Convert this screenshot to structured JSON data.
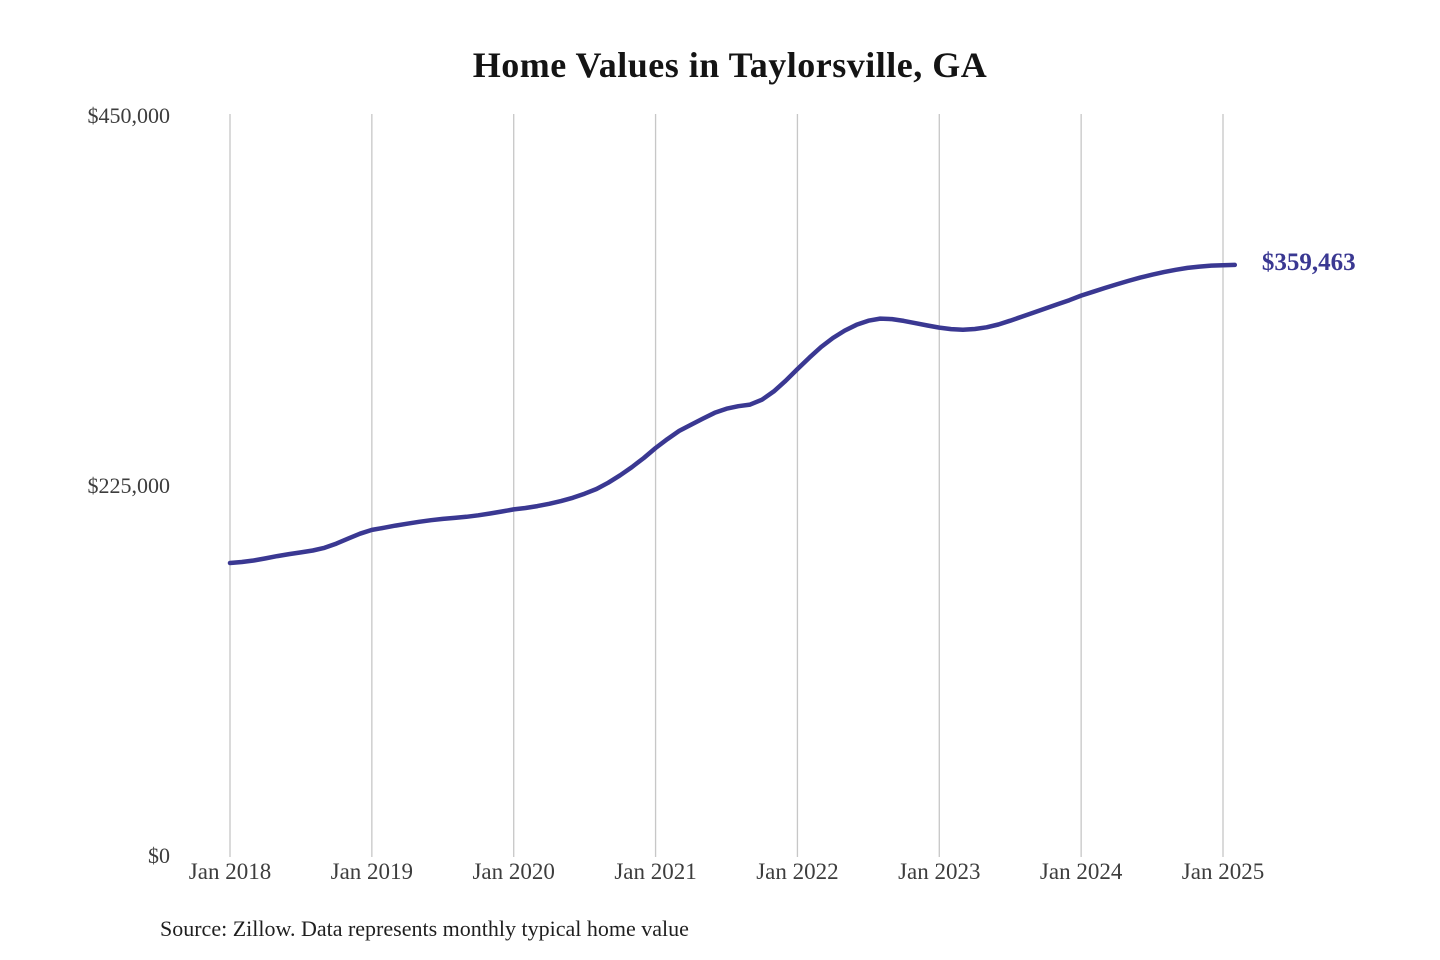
{
  "chart_data": {
    "type": "line",
    "title": "Home Values in Taylorsville, GA",
    "source_note": "Source: Zillow. Data represents monthly typical home value",
    "series_name": "Monthly typical home value",
    "xlabel": "",
    "ylabel": "",
    "ylim": [
      0,
      450000
    ],
    "y_tick_values": [
      450000,
      225000,
      0
    ],
    "y_tick_labels": [
      "$450,000",
      "$225,000",
      "$0"
    ],
    "x_tick_labels": [
      "Jan 2018",
      "Jan 2019",
      "Jan 2020",
      "Jan 2021",
      "Jan 2022",
      "Jan 2023",
      "Jan 2024",
      "Jan 2025"
    ],
    "grid": "vertical-only",
    "legend": "none",
    "line_color": "#3a3892",
    "grid_color": "#c7c7c7",
    "end_label": "$359,463",
    "end_value": 359463,
    "start_month": "2018-01",
    "months_per_point": 1,
    "monthly_values": [
      178200,
      178800,
      179700,
      181000,
      182400,
      183600,
      184600,
      185800,
      187400,
      190000,
      193000,
      196000,
      198300,
      199600,
      200900,
      202100,
      203200,
      204200,
      205000,
      205600,
      206300,
      207200,
      208300,
      209500,
      210800,
      211600,
      212800,
      214200,
      215800,
      217800,
      220300,
      223200,
      227000,
      231500,
      236500,
      242000,
      248100,
      253500,
      258500,
      262300,
      266000,
      269500,
      272000,
      273500,
      274500,
      277500,
      282500,
      289000,
      296100,
      303000,
      309500,
      315000,
      319500,
      323000,
      325500,
      326800,
      326500,
      325400,
      324000,
      322600,
      321300,
      320400,
      320000,
      320500,
      321500,
      323200,
      325500,
      328000,
      330500,
      333000,
      335500,
      338000,
      340800,
      343100,
      345400,
      347600,
      349700,
      351700,
      353500,
      355100,
      356500,
      357600,
      358400,
      359000,
      359300,
      359463
    ]
  }
}
